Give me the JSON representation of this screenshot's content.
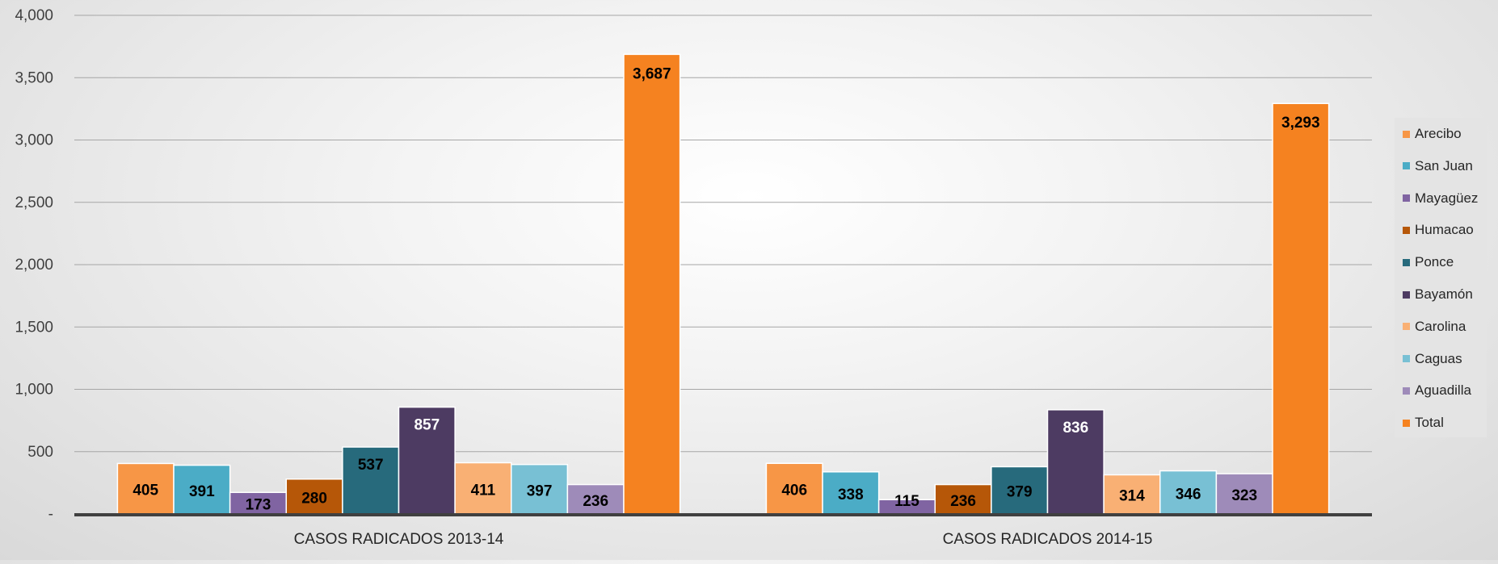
{
  "chart_data": {
    "type": "bar",
    "categories": [
      "CASOS RADICADOS 2013-14",
      "CASOS RADICADOS 2014-15"
    ],
    "series": [
      {
        "name": "Arecibo",
        "color": "#f79646",
        "values": [
          405,
          406
        ],
        "labels": [
          "405",
          "406"
        ]
      },
      {
        "name": "San Juan",
        "color": "#4bacc6",
        "values": [
          391,
          338
        ],
        "labels": [
          "391",
          "338"
        ]
      },
      {
        "name": "Mayagüez",
        "color": "#8064a2",
        "values": [
          173,
          115
        ],
        "labels": [
          "173",
          "115"
        ]
      },
      {
        "name": "Humacao",
        "color": "#b65708",
        "values": [
          280,
          236
        ],
        "labels": [
          "280",
          "236"
        ]
      },
      {
        "name": "Ponce",
        "color": "#276a7c",
        "values": [
          537,
          379
        ],
        "labels": [
          "537",
          "379"
        ]
      },
      {
        "name": "Bayamón",
        "color": "#4d3b62",
        "values": [
          857,
          836
        ],
        "labels": [
          "857",
          "836"
        ]
      },
      {
        "name": "Carolina",
        "color": "#f9b074",
        "values": [
          411,
          314
        ],
        "labels": [
          "411",
          "314"
        ]
      },
      {
        "name": "Caguas",
        "color": "#78c0d4",
        "values": [
          397,
          346
        ],
        "labels": [
          "397",
          "346"
        ]
      },
      {
        "name": "Aguadilla",
        "color": "#9e8bb9",
        "values": [
          236,
          323
        ],
        "labels": [
          "236",
          "323"
        ]
      },
      {
        "name": "Total",
        "color": "#f58220",
        "values": [
          3687,
          3293
        ],
        "labels": [
          "3,687",
          "3,293"
        ]
      }
    ],
    "label_colors": [
      "#000000",
      "#000000",
      "#000000",
      "#000000",
      "#000000",
      "#ffffff",
      "#000000",
      "#000000",
      "#000000",
      "#000000"
    ],
    "y_tick_values": [
      0,
      500,
      1000,
      1500,
      2000,
      2500,
      3000,
      3500,
      4000
    ],
    "y_tick_labels": [
      "-",
      "500",
      "1,000",
      "1,500",
      "2,000",
      "2,500",
      "3,000",
      "3,500",
      "4,000"
    ],
    "ylim": [
      0,
      4000
    ],
    "grid": true,
    "legend_position": "right",
    "title": "",
    "xlabel": "",
    "ylabel": ""
  }
}
